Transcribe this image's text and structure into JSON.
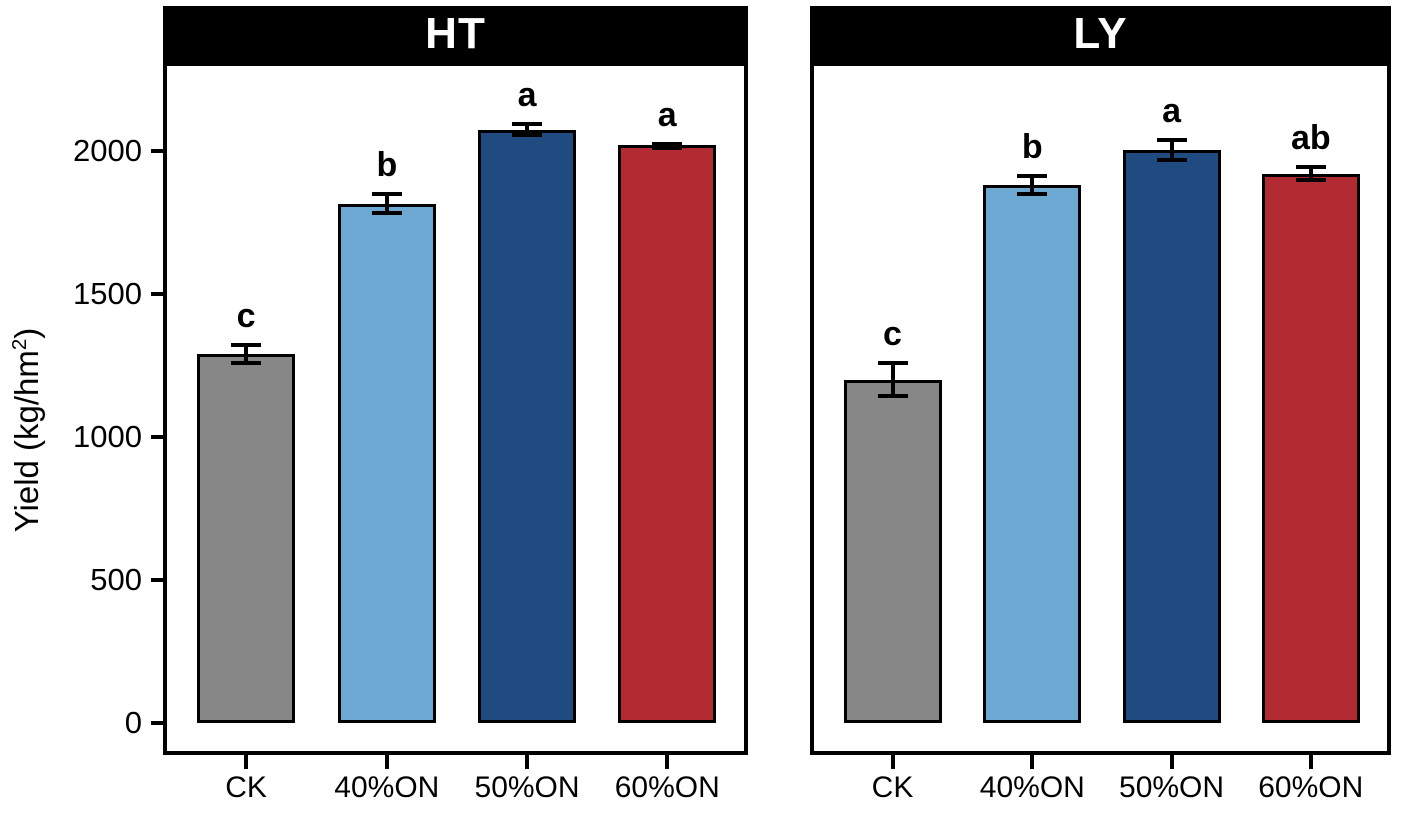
{
  "chart_data": {
    "type": "bar",
    "title": "",
    "ylabel": "Yield (kg/hm²)",
    "ylabel_parts": {
      "prefix": "Yield (kg/hm",
      "sup": "2",
      "suffix": ")"
    },
    "categories": [
      "CK",
      "40%ON",
      "50%ON",
      "60%ON"
    ],
    "yticks": [
      0,
      500,
      1000,
      1500,
      2000
    ],
    "ylim": [
      0,
      2300
    ],
    "grid": false,
    "legend": "none",
    "bar_colors": [
      "#878787",
      "#6DA8D2",
      "#1F4B80",
      "#B32B32"
    ],
    "strip_bg": "#000000",
    "strip_text_color": "#FFFFFF",
    "facets": [
      {
        "title": "HT",
        "values": [
          1290,
          1815,
          2075,
          2020
        ],
        "errors": [
          40,
          40,
          25,
          12
        ],
        "sig_letters": [
          "c",
          "b",
          "a",
          "a"
        ]
      },
      {
        "title": "LY",
        "values": [
          1200,
          1880,
          2005,
          1920
        ],
        "errors": [
          65,
          38,
          42,
          30
        ],
        "sig_letters": [
          "c",
          "b",
          "a",
          "ab"
        ]
      }
    ]
  }
}
